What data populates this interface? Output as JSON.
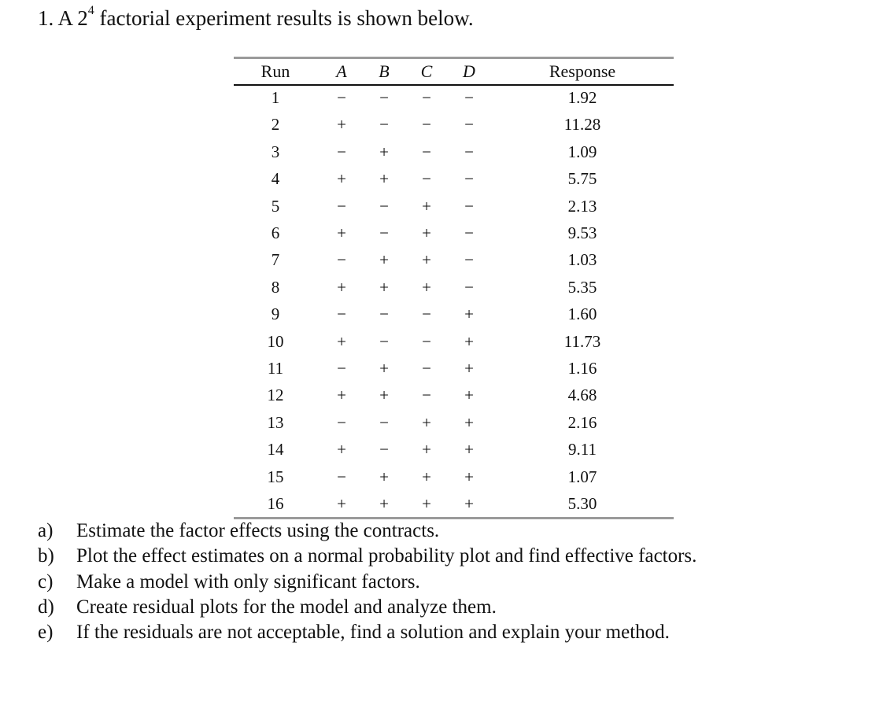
{
  "problem": {
    "number": "1.",
    "text_before": "A 2",
    "superscript": "4",
    "text_after": " factorial experiment results is shown below."
  },
  "table": {
    "headers": [
      "Run",
      "A",
      "B",
      "C",
      "D",
      "Response"
    ],
    "rows": [
      [
        "1",
        "−",
        "−",
        "−",
        "−",
        "1.92"
      ],
      [
        "2",
        "+",
        "−",
        "−",
        "−",
        "11.28"
      ],
      [
        "3",
        "−",
        "+",
        "−",
        "−",
        "1.09"
      ],
      [
        "4",
        "+",
        "+",
        "−",
        "−",
        "5.75"
      ],
      [
        "5",
        "−",
        "−",
        "+",
        "−",
        "2.13"
      ],
      [
        "6",
        "+",
        "−",
        "+",
        "−",
        "9.53"
      ],
      [
        "7",
        "−",
        "+",
        "+",
        "−",
        "1.03"
      ],
      [
        "8",
        "+",
        "+",
        "+",
        "−",
        "5.35"
      ],
      [
        "9",
        "−",
        "−",
        "−",
        "+",
        "1.60"
      ],
      [
        "10",
        "+",
        "−",
        "−",
        "+",
        "11.73"
      ],
      [
        "11",
        "−",
        "+",
        "−",
        "+",
        "1.16"
      ],
      [
        "12",
        "+",
        "+",
        "−",
        "+",
        "4.68"
      ],
      [
        "13",
        "−",
        "−",
        "+",
        "+",
        "2.16"
      ],
      [
        "14",
        "+",
        "−",
        "+",
        "+",
        "9.11"
      ],
      [
        "15",
        "−",
        "+",
        "+",
        "+",
        "1.07"
      ],
      [
        "16",
        "+",
        "+",
        "+",
        "+",
        "5.30"
      ]
    ]
  },
  "questions": [
    {
      "label": "a)",
      "text": "Estimate the factor effects using the contracts."
    },
    {
      "label": "b)",
      "text": "Plot the effect estimates on a normal probability plot and find effective factors."
    },
    {
      "label": "c)",
      "text": "Make a model with only significant factors."
    },
    {
      "label": "d)",
      "text": "Create residual plots for the model and analyze them."
    },
    {
      "label": "e)",
      "text": "If the residuals are not acceptable, find a solution and explain your method."
    }
  ]
}
